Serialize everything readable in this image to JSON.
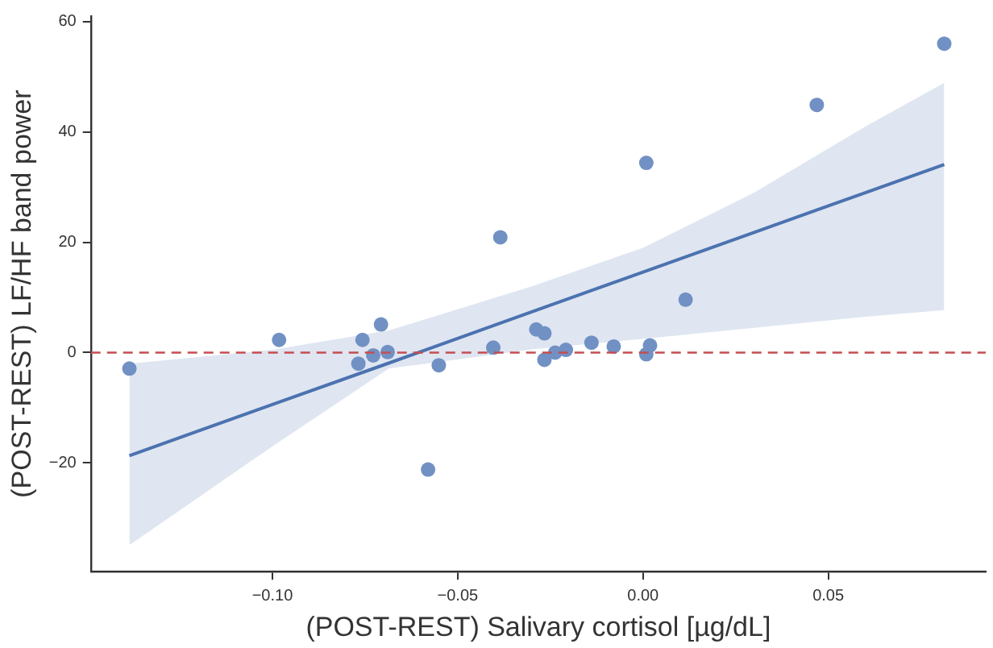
{
  "chart_data": {
    "type": "scatter",
    "xlabel": "(POST-REST) Salivary cortisol [µg/dL]",
    "ylabel": "(POST-REST) LF/HF band power",
    "xlim": [
      -0.149,
      0.0925
    ],
    "ylim": [
      -39.7,
      61
    ],
    "xticks": [
      {
        "value": -0.1,
        "label": "−0.10"
      },
      {
        "value": -0.05,
        "label": "−0.05"
      },
      {
        "value": 0,
        "label": "0.00"
      },
      {
        "value": 0.05,
        "label": "0.05"
      }
    ],
    "yticks": [
      {
        "value": -20,
        "label": "−20"
      },
      0,
      20,
      40,
      60
    ],
    "legend": false,
    "series": [
      {
        "marker": "circle",
        "color": "#7191c4",
        "x": [
          -0.1386,
          -0.0982,
          -0.0757,
          -0.0707,
          -0.0768,
          -0.0728,
          -0.0689,
          -0.058,
          -0.0551,
          -0.0385,
          -0.0404,
          -0.0288,
          -0.0266,
          -0.0266,
          -0.0237,
          -0.0208,
          -0.0139,
          -0.0079,
          0.0009,
          0.0009,
          0.0019,
          0.0115,
          0.0469,
          0.0813
        ],
        "values": [
          -2.9,
          2.3,
          2.3,
          5.1,
          -2.0,
          -0.5,
          0.1,
          -21.2,
          -2.3,
          20.9,
          0.9,
          4.2,
          3.5,
          -1.3,
          0.0,
          0.5,
          1.8,
          1.1,
          34.4,
          -0.3,
          1.3,
          9.6,
          44.9,
          56.0
        ]
      },
      {
        "type": "line",
        "marker": "none",
        "color": "#4c72b0",
        "line_style": "solid",
        "x": [
          -0.1386,
          -0.1,
          -0.0686,
          -0.03,
          0,
          0.03,
          0.06,
          0.0813
        ],
        "values": [
          -18.7,
          -9.4,
          -1.9,
          7.4,
          14.6,
          21.8,
          29.0,
          34.1
        ],
        "lower": [
          -34.9,
          -17,
          -2.9,
          0.6,
          2.5,
          4.5,
          6.5,
          7.7
        ],
        "upper": [
          -2.0,
          0.5,
          4,
          12,
          19,
          29,
          41,
          48.9
        ]
      }
    ],
    "ref_lines": [
      {
        "axis": "y",
        "value": 0,
        "color": "#c44e52",
        "line_style": "dashed"
      }
    ]
  }
}
